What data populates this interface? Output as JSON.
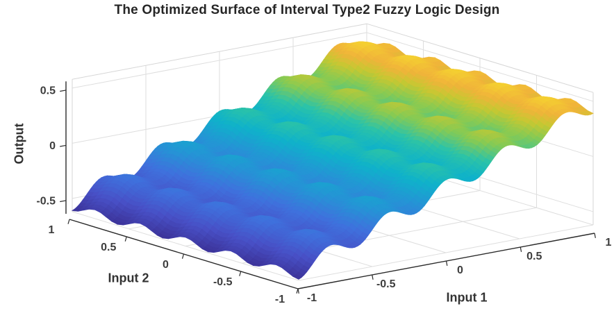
{
  "figure": {
    "title": "The Optimized Surface of Interval Type2 Fuzzy Logic Design",
    "background": "#ffffff"
  },
  "axes": {
    "x": {
      "label": "Input 1",
      "ticks": [
        -1,
        -0.5,
        0,
        0.5,
        1
      ],
      "tick_labels": [
        "-1",
        "-0.5",
        "0",
        "0.5",
        "1"
      ],
      "range": [
        -1,
        1
      ]
    },
    "y": {
      "label": "Input 2",
      "ticks": [
        -1,
        -0.5,
        0,
        0.5,
        1
      ],
      "tick_labels": [
        "-1",
        "-0.5",
        "0",
        "0.5",
        "1"
      ],
      "range": [
        -1,
        1
      ]
    },
    "z": {
      "label": "Output",
      "ticks": [
        -0.5,
        0,
        0.5
      ],
      "tick_labels": [
        "-0.5",
        "0",
        "0.5"
      ],
      "range": [
        -0.62,
        0.58
      ]
    }
  },
  "colors": {
    "grid": "#dedede",
    "box_edge": "#d6d6d6",
    "axis_line": "#2a2a2a",
    "tick_text": "#3d3d3d",
    "label_text": "#333333",
    "title_text": "#262626"
  },
  "chart_data": {
    "type": "surface",
    "title": "The Optimized Surface of Interval Type2 Fuzzy Logic Design",
    "xlabel": "Input 1",
    "ylabel": "Input 2",
    "zlabel": "Output",
    "x_range": [
      -1,
      1
    ],
    "y_range": [
      -1,
      1
    ],
    "zlim": [
      -0.62,
      0.58
    ],
    "color_range": [
      -0.61,
      0.61
    ],
    "grid": true,
    "legend": false,
    "surface_formula": "z = 0.5*x + 0.075*cos(5*pi*x) + 0.035*cos(5*pi*y)",
    "params": {
      "slope": 0.5,
      "ripple_x_amp": 0.075,
      "ripple_x_freq": 5,
      "ripple_y_amp": 0.035,
      "ripple_y_freq": 5
    },
    "profile_x": [
      -1,
      -0.9,
      -0.8,
      -0.7,
      -0.6,
      -0.5,
      -0.4,
      -0.3,
      -0.2,
      -0.1,
      0,
      0.1,
      0.2,
      0.3,
      0.4,
      0.5,
      0.6,
      0.7,
      0.8,
      0.9,
      1
    ],
    "profile_z_at_y_minus1": [
      -0.61,
      -0.485,
      -0.36,
      -0.385,
      -0.41,
      -0.285,
      -0.16,
      -0.185,
      -0.21,
      -0.085,
      0.04,
      0.015,
      -0.01,
      0.115,
      0.24,
      0.215,
      0.19,
      0.315,
      0.44,
      0.415,
      0.39
    ],
    "colormap": "parula",
    "colormap_stops": [
      [
        0.0,
        "#3c3399"
      ],
      [
        0.12,
        "#4850c6"
      ],
      [
        0.25,
        "#3f71dd"
      ],
      [
        0.38,
        "#2495d5"
      ],
      [
        0.5,
        "#0fb2ca"
      ],
      [
        0.6,
        "#2cc3a7"
      ],
      [
        0.7,
        "#86ca54"
      ],
      [
        0.78,
        "#c6c832"
      ],
      [
        0.85,
        "#f0b33a"
      ],
      [
        0.93,
        "#f5d330"
      ],
      [
        1.0,
        "#f9e838"
      ]
    ]
  }
}
